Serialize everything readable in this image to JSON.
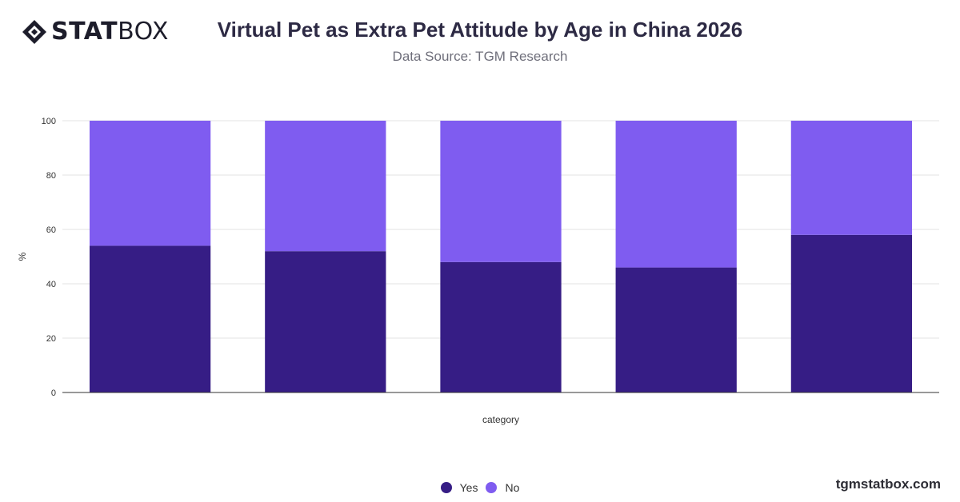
{
  "brand": {
    "logo_bold": "STAT",
    "logo_light": "BOX",
    "watermark": "tgmstatbox.com"
  },
  "header": {
    "title": "Virtual Pet as Extra Pet Attitude by Age in China 2026",
    "subtitle": "Data Source: TGM Research"
  },
  "colors": {
    "yes": "#361d85",
    "no": "#7f5cf0",
    "grid": "#e3e3e3",
    "axis": "#333333"
  },
  "chart_data": {
    "type": "bar",
    "stacked": true,
    "categories": [
      "",
      "",
      "",
      "",
      ""
    ],
    "series": [
      {
        "name": "Yes",
        "values": [
          54,
          52,
          48,
          46,
          58
        ]
      },
      {
        "name": "No",
        "values": [
          46,
          48,
          52,
          54,
          42
        ]
      }
    ],
    "xlabel": "category",
    "ylabel": "%",
    "ylim": [
      0,
      100
    ],
    "yticks": [
      0,
      20,
      40,
      60,
      80,
      100
    ],
    "grid": true,
    "legend_position": "bottom"
  }
}
